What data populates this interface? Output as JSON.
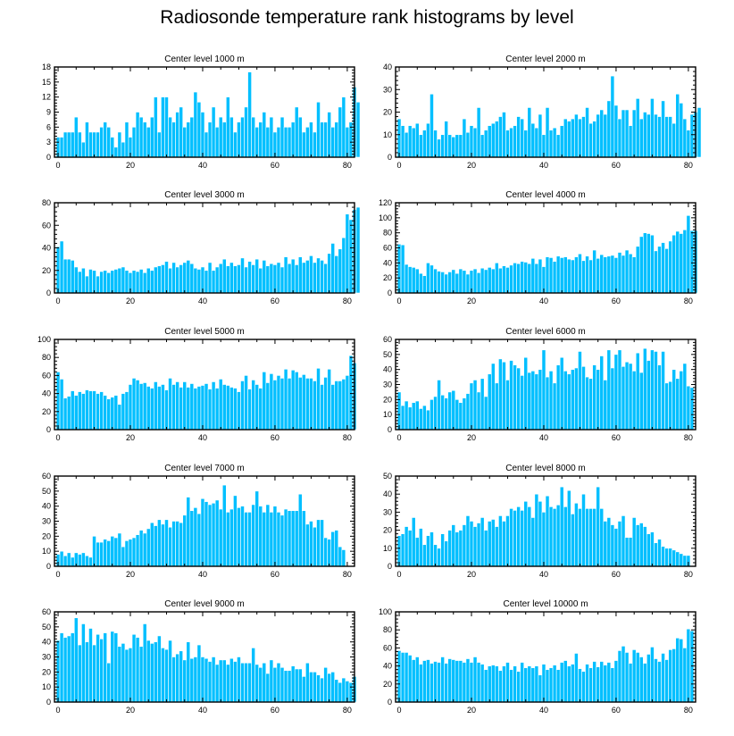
{
  "figure": {
    "title": "Radiosonde temperature rank histograms by level"
  },
  "style": {
    "bar_color": "#00BFFF",
    "bar_edge": "#ffffff",
    "axis_color": "#000000"
  },
  "chart_data": [
    {
      "type": "bar",
      "title": "Center level 1000 m",
      "xlim": [
        -1,
        82
      ],
      "ylim": [
        0,
        18
      ],
      "xticks": [
        0,
        20,
        40,
        60,
        80
      ],
      "yticks": [
        0,
        3,
        6,
        9,
        12,
        15,
        18
      ],
      "values": [
        4,
        4,
        5,
        5,
        5,
        8,
        5,
        3,
        7,
        5,
        5,
        5,
        6,
        7,
        6,
        4,
        2,
        5,
        3,
        7,
        4,
        6,
        9,
        8,
        7,
        6,
        8,
        12,
        5,
        12,
        12,
        8,
        7,
        9,
        10,
        6,
        7,
        8,
        13,
        11,
        9,
        5,
        7,
        10,
        6,
        8,
        7,
        12,
        8,
        5,
        7,
        8,
        10,
        17,
        8,
        6,
        7,
        9,
        6,
        8,
        5,
        6,
        8,
        6,
        6,
        7,
        10,
        8,
        5,
        6,
        7,
        5,
        11,
        7,
        7,
        9,
        6,
        7,
        10,
        12,
        6,
        7,
        14,
        11
      ]
    },
    {
      "type": "bar",
      "title": "Center level 2000 m",
      "xlim": [
        -1,
        82
      ],
      "ylim": [
        0,
        40
      ],
      "xticks": [
        0,
        20,
        40,
        60,
        80
      ],
      "yticks": [
        0,
        10,
        20,
        30,
        40
      ],
      "values": [
        17,
        14,
        11,
        14,
        13,
        15,
        10,
        12,
        15,
        28,
        12,
        8,
        10,
        16,
        10,
        9,
        10,
        10,
        17,
        11,
        14,
        13,
        22,
        10,
        12,
        14,
        15,
        16,
        18,
        20,
        12,
        13,
        14,
        18,
        17,
        12,
        22,
        15,
        13,
        19,
        10,
        22,
        12,
        13,
        10,
        14,
        17,
        16,
        17,
        19,
        17,
        18,
        22,
        15,
        16,
        19,
        21,
        19,
        25,
        36,
        23,
        17,
        21,
        21,
        14,
        21,
        26,
        17,
        20,
        19,
        26,
        19,
        18,
        25,
        18,
        18,
        15,
        28,
        24,
        17,
        12,
        19,
        20,
        22
      ]
    },
    {
      "type": "bar",
      "title": "Center level 3000 m",
      "xlim": [
        -1,
        82
      ],
      "ylim": [
        0,
        80
      ],
      "xticks": [
        0,
        20,
        40,
        60,
        80
      ],
      "yticks": [
        0,
        20,
        40,
        60,
        80
      ],
      "values": [
        41,
        46,
        30,
        30,
        29,
        23,
        19,
        22,
        15,
        21,
        20,
        15,
        19,
        20,
        18,
        20,
        21,
        22,
        23,
        20,
        18,
        20,
        19,
        21,
        18,
        22,
        20,
        23,
        24,
        25,
        28,
        22,
        27,
        23,
        25,
        27,
        29,
        26,
        22,
        21,
        23,
        20,
        27,
        20,
        23,
        26,
        30,
        24,
        27,
        24,
        25,
        31,
        23,
        28,
        25,
        30,
        22,
        29,
        24,
        26,
        25,
        27,
        23,
        32,
        26,
        30,
        25,
        32,
        27,
        29,
        33,
        27,
        31,
        29,
        26,
        35,
        44,
        33,
        39,
        49,
        70,
        65,
        74,
        76
      ]
    },
    {
      "type": "bar",
      "title": "Center level 4000 m",
      "xlim": [
        -1,
        82
      ],
      "ylim": [
        0,
        120
      ],
      "xticks": [
        0,
        20,
        40,
        60,
        80
      ],
      "yticks": [
        0,
        20,
        40,
        60,
        80,
        100,
        120
      ],
      "values": [
        65,
        64,
        38,
        35,
        34,
        32,
        26,
        23,
        40,
        37,
        32,
        29,
        28,
        25,
        28,
        31,
        26,
        32,
        30,
        25,
        30,
        32,
        27,
        33,
        31,
        34,
        32,
        40,
        33,
        36,
        34,
        37,
        40,
        39,
        42,
        41,
        39,
        46,
        39,
        45,
        35,
        48,
        47,
        42,
        49,
        47,
        48,
        45,
        44,
        48,
        52,
        43,
        49,
        44,
        57,
        46,
        51,
        48,
        49,
        50,
        47,
        54,
        50,
        57,
        52,
        48,
        62,
        75,
        80,
        79,
        77,
        56,
        62,
        67,
        59,
        69,
        77,
        82,
        79,
        84,
        103,
        83,
        83
      ]
    },
    {
      "type": "bar",
      "title": "Center level 5000 m",
      "xlim": [
        -1,
        82
      ],
      "ylim": [
        0,
        100
      ],
      "xticks": [
        0,
        20,
        40,
        60,
        80
      ],
      "yticks": [
        0,
        20,
        40,
        60,
        80,
        100
      ],
      "values": [
        64,
        56,
        35,
        37,
        43,
        38,
        42,
        40,
        44,
        43,
        43,
        40,
        42,
        38,
        34,
        36,
        38,
        28,
        40,
        42,
        50,
        57,
        55,
        51,
        52,
        48,
        46,
        53,
        48,
        50,
        44,
        57,
        50,
        53,
        47,
        53,
        47,
        51,
        46,
        48,
        49,
        51,
        45,
        53,
        46,
        56,
        50,
        49,
        47,
        46,
        42,
        54,
        60,
        45,
        55,
        50,
        46,
        64,
        52,
        62,
        55,
        60,
        57,
        67,
        57,
        66,
        64,
        58,
        61,
        57,
        57,
        54,
        68,
        50,
        58,
        67,
        50,
        54,
        54,
        56,
        60,
        82,
        74
      ]
    },
    {
      "type": "bar",
      "title": "Center level 6000 m",
      "xlim": [
        -1,
        82
      ],
      "ylim": [
        0,
        60
      ],
      "xticks": [
        0,
        20,
        40,
        60,
        80
      ],
      "yticks": [
        0,
        10,
        20,
        30,
        40,
        50,
        60
      ],
      "values": [
        25,
        16,
        19,
        15,
        18,
        19,
        14,
        16,
        13,
        20,
        22,
        33,
        23,
        21,
        25,
        26,
        20,
        18,
        21,
        24,
        31,
        33,
        25,
        34,
        22,
        37,
        44,
        31,
        47,
        45,
        33,
        46,
        43,
        41,
        36,
        48,
        38,
        39,
        37,
        40,
        53,
        35,
        39,
        31,
        43,
        48,
        39,
        37,
        40,
        41,
        52,
        42,
        35,
        34,
        43,
        40,
        49,
        33,
        53,
        41,
        50,
        53,
        42,
        45,
        44,
        39,
        51,
        38,
        54,
        46,
        53,
        52,
        43,
        52,
        31,
        32,
        40,
        34,
        39,
        44,
        29,
        28
      ]
    },
    {
      "type": "bar",
      "title": "Center level 7000 m",
      "xlim": [
        -1,
        82
      ],
      "ylim": [
        0,
        60
      ],
      "xticks": [
        0,
        20,
        40,
        60,
        80
      ],
      "yticks": [
        0,
        10,
        20,
        30,
        40,
        50,
        60
      ],
      "values": [
        8,
        10,
        7,
        9,
        6,
        9,
        8,
        9,
        7,
        6,
        20,
        16,
        16,
        18,
        17,
        20,
        19,
        22,
        13,
        17,
        18,
        19,
        21,
        24,
        22,
        25,
        29,
        27,
        31,
        28,
        31,
        26,
        30,
        30,
        29,
        34,
        46,
        37,
        39,
        35,
        45,
        43,
        41,
        42,
        44,
        38,
        54,
        36,
        38,
        47,
        39,
        40,
        36,
        36,
        41,
        50,
        40,
        36,
        41,
        36,
        40,
        36,
        34,
        38,
        37,
        37,
        37,
        48,
        37,
        28,
        30,
        26,
        31,
        31,
        19,
        18,
        23,
        24,
        13,
        11
      ]
    },
    {
      "type": "bar",
      "title": "Center level 8000 m",
      "xlim": [
        -1,
        82
      ],
      "ylim": [
        0,
        50
      ],
      "xticks": [
        0,
        20,
        40,
        60,
        80
      ],
      "yticks": [
        0,
        10,
        20,
        30,
        40,
        50
      ],
      "values": [
        17,
        18,
        22,
        20,
        27,
        16,
        21,
        12,
        17,
        19,
        12,
        10,
        18,
        14,
        20,
        23,
        19,
        20,
        23,
        28,
        25,
        22,
        24,
        27,
        20,
        25,
        26,
        22,
        28,
        25,
        28,
        32,
        31,
        33,
        31,
        36,
        33,
        27,
        40,
        36,
        30,
        39,
        33,
        32,
        34,
        44,
        33,
        42,
        29,
        35,
        32,
        40,
        32,
        32,
        32,
        44,
        32,
        25,
        27,
        23,
        21,
        25,
        28,
        16,
        16,
        27,
        23,
        24,
        22,
        18,
        19,
        13,
        15,
        11,
        10,
        10,
        9,
        8,
        7,
        6,
        6
      ]
    },
    {
      "type": "bar",
      "title": "Center level 9000 m",
      "xlim": [
        -1,
        82
      ],
      "ylim": [
        0,
        60
      ],
      "xticks": [
        0,
        20,
        40,
        60,
        80
      ],
      "yticks": [
        0,
        10,
        20,
        30,
        40,
        50,
        60
      ],
      "values": [
        41,
        46,
        43,
        44,
        46,
        56,
        38,
        52,
        40,
        49,
        38,
        45,
        42,
        46,
        26,
        47,
        46,
        37,
        39,
        35,
        36,
        45,
        43,
        37,
        52,
        41,
        39,
        40,
        44,
        36,
        35,
        41,
        30,
        32,
        34,
        28,
        40,
        29,
        30,
        38,
        30,
        29,
        27,
        30,
        25,
        28,
        28,
        25,
        29,
        27,
        30,
        26,
        26,
        26,
        36,
        25,
        23,
        26,
        19,
        28,
        23,
        26,
        23,
        21,
        21,
        24,
        22,
        22,
        17,
        26,
        20,
        20,
        18,
        16,
        23,
        19,
        20,
        15,
        13,
        16,
        14,
        13,
        17
      ]
    },
    {
      "type": "bar",
      "title": "Center level 10000 m",
      "xlim": [
        -1,
        82
      ],
      "ylim": [
        0,
        100
      ],
      "xticks": [
        0,
        20,
        40,
        60,
        80
      ],
      "yticks": [
        0,
        20,
        40,
        60,
        80,
        100
      ],
      "values": [
        57,
        55,
        55,
        52,
        47,
        50,
        42,
        46,
        47,
        43,
        45,
        44,
        50,
        43,
        48,
        47,
        46,
        46,
        44,
        48,
        44,
        50,
        44,
        42,
        36,
        40,
        41,
        40,
        35,
        40,
        44,
        36,
        40,
        34,
        44,
        38,
        40,
        38,
        40,
        30,
        42,
        36,
        38,
        41,
        36,
        44,
        46,
        40,
        42,
        54,
        37,
        34,
        42,
        38,
        45,
        39,
        45,
        41,
        44,
        38,
        46,
        57,
        62,
        55,
        43,
        58,
        55,
        50,
        43,
        53,
        61,
        48,
        45,
        54,
        47,
        58,
        59,
        71,
        70,
        60,
        81,
        79
      ]
    }
  ]
}
